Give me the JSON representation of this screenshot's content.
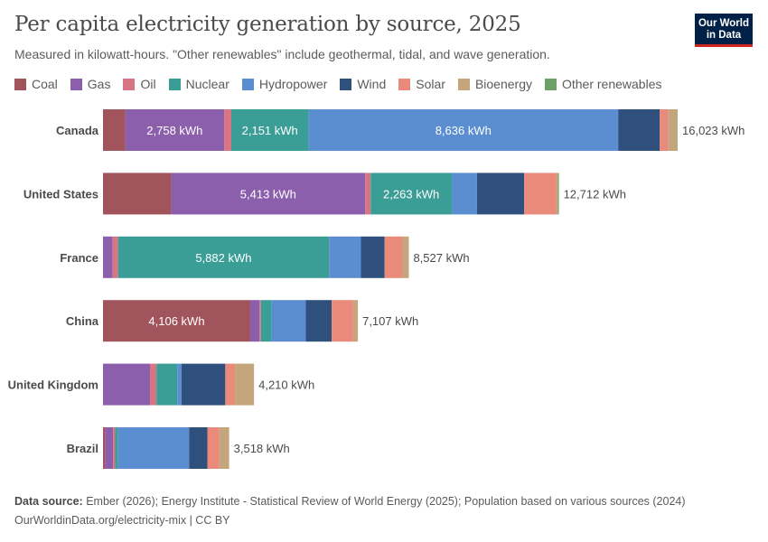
{
  "header": {
    "title": "Per capita electricity generation by source, 2025",
    "subtitle": "Measured in kilowatt-hours. \"Other renewables\" include geothermal, tidal, and wave generation.",
    "logo_line1": "Our World",
    "logo_line2": "in Data"
  },
  "footer": {
    "source_label": "Data source:",
    "source_text": "Ember (2026); Energy Institute - Statistical Review of World Energy (2025); Population based on various sources (2024)",
    "url_license": "OurWorldinData.org/electricity-mix | CC BY"
  },
  "chart_data": {
    "type": "bar",
    "orientation": "horizontal",
    "stacked": true,
    "title": "Per capita electricity generation by source, 2025",
    "subtitle": "Measured in kilowatt-hours. \"Other renewables\" include geothermal, tidal, and wave generation.",
    "unit": "kWh",
    "xlim": [
      0,
      16023
    ],
    "grid": false,
    "legend_position": "top",
    "categories": [
      "Canada",
      "United States",
      "France",
      "China",
      "United Kingdom",
      "Brazil"
    ],
    "totals": [
      16023,
      12712,
      8527,
      7107,
      4210,
      3518
    ],
    "total_labels": [
      "16,023 kWh",
      "12,712 kWh",
      "8,527 kWh",
      "7,107 kWh",
      "4,210 kWh",
      "3,518 kWh"
    ],
    "series": [
      {
        "name": "Coal",
        "color": "#a2545c",
        "values": [
          620,
          1900,
          0,
          4106,
          0,
          60
        ],
        "labels": [
          "",
          "",
          "",
          "4,106 kWh",
          "",
          ""
        ]
      },
      {
        "name": "Gas",
        "color": "#8b5fac",
        "values": [
          2758,
          5413,
          270,
          260,
          1310,
          220
        ],
        "labels": [
          "2,758 kWh",
          "5,413 kWh",
          "",
          "",
          "",
          ""
        ]
      },
      {
        "name": "Oil",
        "color": "#d77585",
        "values": [
          200,
          150,
          150,
          40,
          180,
          60
        ],
        "labels": [
          "",
          "",
          "",
          "",
          "",
          ""
        ]
      },
      {
        "name": "Nuclear",
        "color": "#3a9e97",
        "values": [
          2151,
          2263,
          5882,
          300,
          580,
          80
        ],
        "labels": [
          "2,151 kWh",
          "2,263 kWh",
          "5,882 kWh",
          "",
          "",
          ""
        ]
      },
      {
        "name": "Hydropower",
        "color": "#5b8ed0",
        "values": [
          8636,
          700,
          890,
          950,
          120,
          1980
        ],
        "labels": [
          "8,636 kWh",
          "",
          "",
          "",
          "",
          ""
        ]
      },
      {
        "name": "Wind",
        "color": "#2f4f7c",
        "values": [
          1160,
          1320,
          660,
          720,
          1220,
          510
        ],
        "labels": [
          "",
          "",
          "",
          "",
          "",
          ""
        ]
      },
      {
        "name": "Solar",
        "color": "#ea8a7b",
        "values": [
          230,
          900,
          500,
          600,
          270,
          330
        ],
        "labels": [
          "",
          "",
          "",
          "",
          "",
          ""
        ]
      },
      {
        "name": "Bioenergy",
        "color": "#c4a57c",
        "values": [
          260,
          40,
          175,
          130,
          530,
          278
        ],
        "labels": [
          "",
          "",
          "",
          "",
          "",
          ""
        ]
      },
      {
        "name": "Other renewables",
        "color": "#6ea06a",
        "values": [
          8,
          26,
          0,
          1,
          0,
          0
        ],
        "labels": [
          "",
          "",
          "",
          "",
          "",
          ""
        ]
      }
    ]
  }
}
